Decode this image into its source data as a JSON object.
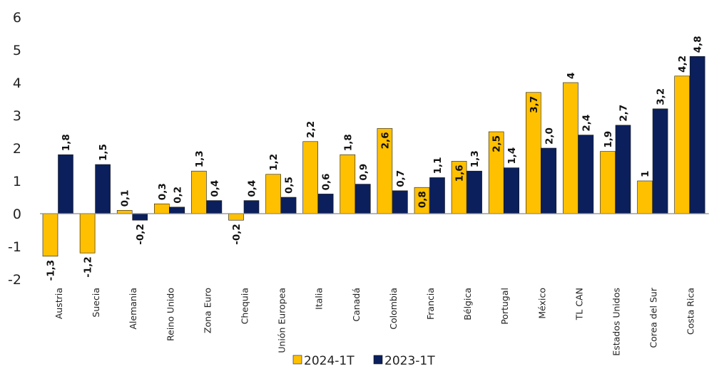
{
  "chart_data": {
    "type": "bar",
    "title": "",
    "xlabel": "",
    "ylabel": "",
    "ylim": [
      -2,
      6
    ],
    "yticks": [
      -2,
      -1,
      0,
      1,
      2,
      3,
      4,
      5,
      6
    ],
    "grid": false,
    "legend_position": "bottom",
    "categories": [
      "Austria",
      "Suecia",
      "Alemania",
      "Reino Unido",
      "Zona Euro",
      "Chequia",
      "Unión Europea",
      "Italia",
      "Canadá",
      "Colombia",
      "Francia",
      "Bélgica",
      "Portugal",
      "México",
      "TL CAN",
      "Estados Unidos",
      "Corea del Sur",
      "Costa Rica"
    ],
    "series": [
      {
        "name": "2024-1T",
        "color": "#FFC000",
        "values": [
          -1.3,
          -1.2,
          0.1,
          0.3,
          1.3,
          -0.2,
          1.2,
          2.2,
          1.8,
          2.6,
          0.8,
          1.6,
          2.5,
          3.7,
          4.0,
          1.9,
          1.0,
          4.2
        ],
        "labels": [
          "-1,3",
          "-1,2",
          "0,1",
          "0,3",
          "1,3",
          "-0,2",
          "1,2",
          "2,2",
          "1,8",
          "2,6",
          "0,8",
          "1,6",
          "2,5",
          "3,7",
          "4",
          "1,9",
          "1",
          "4,2"
        ]
      },
      {
        "name": "2023-1T",
        "color": "#0A1F5C",
        "values": [
          1.8,
          1.5,
          -0.2,
          0.2,
          0.4,
          0.4,
          0.5,
          0.6,
          0.9,
          0.7,
          1.1,
          1.3,
          1.4,
          2.0,
          2.4,
          2.7,
          3.2,
          4.8
        ],
        "labels": [
          "1,8",
          "1,5",
          "-0,2",
          "0,2",
          "0,4",
          "0,4",
          "0,5",
          "0,6",
          "0,9",
          "0,7",
          "1,1",
          "1,3",
          "1,4",
          "2,0",
          "2,4",
          "2,7",
          "3,2",
          "4,8"
        ]
      }
    ]
  }
}
